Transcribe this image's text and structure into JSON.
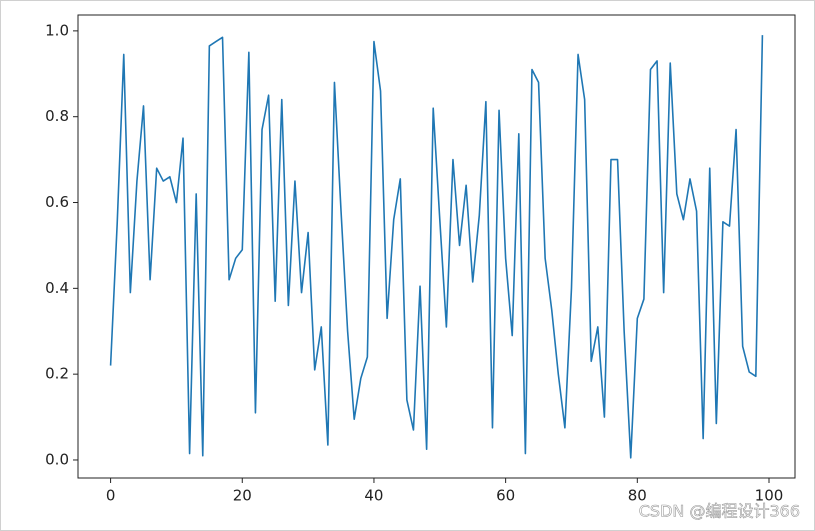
{
  "chart_data": {
    "type": "line",
    "x": [
      0,
      1,
      2,
      3,
      4,
      5,
      6,
      7,
      8,
      9,
      10,
      11,
      12,
      13,
      14,
      15,
      16,
      17,
      18,
      19,
      20,
      21,
      22,
      23,
      24,
      25,
      26,
      27,
      28,
      29,
      30,
      31,
      32,
      33,
      34,
      35,
      36,
      37,
      38,
      39,
      40,
      41,
      42,
      43,
      44,
      45,
      46,
      47,
      48,
      49,
      50,
      51,
      52,
      53,
      54,
      55,
      56,
      57,
      58,
      59,
      60,
      61,
      62,
      63,
      64,
      65,
      66,
      67,
      68,
      69,
      70,
      71,
      72,
      73,
      74,
      75,
      76,
      77,
      78,
      79,
      80,
      81,
      82,
      83,
      84,
      85,
      86,
      87,
      88,
      89,
      90,
      91,
      92,
      93,
      94,
      95,
      96,
      97,
      98,
      99
    ],
    "series": [
      {
        "color": "#1f77b4",
        "values": [
          0.22,
          0.55,
          0.945,
          0.39,
          0.65,
          0.825,
          0.42,
          0.68,
          0.65,
          0.66,
          0.6,
          0.75,
          0.015,
          0.62,
          0.01,
          0.965,
          0.975,
          0.985,
          0.42,
          0.47,
          0.49,
          0.95,
          0.11,
          0.77,
          0.85,
          0.37,
          0.84,
          0.36,
          0.65,
          0.39,
          0.53,
          0.21,
          0.31,
          0.035,
          0.88,
          0.58,
          0.3,
          0.095,
          0.19,
          0.24,
          0.975,
          0.86,
          0.33,
          0.56,
          0.655,
          0.14,
          0.07,
          0.405,
          0.025,
          0.82,
          0.56,
          0.31,
          0.7,
          0.5,
          0.64,
          0.415,
          0.57,
          0.835,
          0.075,
          0.815,
          0.47,
          0.29,
          0.76,
          0.015,
          0.91,
          0.88,
          0.47,
          0.35,
          0.2,
          0.075,
          0.4,
          0.945,
          0.84,
          0.23,
          0.31,
          0.1,
          0.7,
          0.7,
          0.3,
          0.005,
          0.33,
          0.375,
          0.91,
          0.93,
          0.39,
          0.925,
          0.62,
          0.56,
          0.655,
          0.58,
          0.05,
          0.68,
          0.085,
          0.555,
          0.545,
          0.77,
          0.265,
          0.205,
          0.195,
          0.99
        ]
      }
    ],
    "xlim": [
      -4.95,
      103.95
    ],
    "xticks": [
      0,
      20,
      40,
      60,
      80,
      100
    ],
    "ylim": [
      -0.042,
      1.037
    ],
    "yticks": [
      {
        "value": 0,
        "label": "0.0"
      },
      0.2,
      0.4,
      0.6,
      0.8,
      {
        "value": 1,
        "label": "1.0"
      }
    ],
    "watermark": "CSDN @编程设计366"
  }
}
